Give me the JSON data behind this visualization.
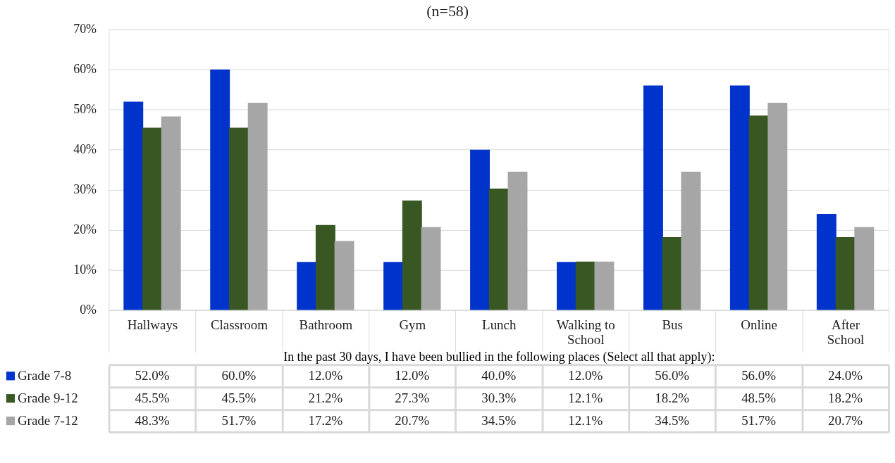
{
  "chart_data": {
    "type": "bar",
    "title": "(n=58)",
    "xlabel": "In the past 30 days, I have been bullied in the following places (Select all that apply):",
    "categories": [
      "Hallways",
      "Classroom",
      "Bathroom",
      "Gym",
      "Lunch",
      "Walking to School",
      "Bus",
      "Online",
      "After School"
    ],
    "series": [
      {
        "name": "Grade  7-8",
        "color": "#0033cc",
        "values": [
          52.0,
          60.0,
          12.0,
          12.0,
          40.0,
          12.0,
          56.0,
          56.0,
          24.0
        ],
        "value_labels": [
          "52.0%",
          "60.0%",
          "12.0%",
          "12.0%",
          "40.0%",
          "12.0%",
          "56.0%",
          "56.0%",
          "24.0%"
        ]
      },
      {
        "name": "Grade  9-12",
        "color": "#385723",
        "values": [
          45.5,
          45.5,
          21.2,
          27.3,
          30.3,
          12.1,
          18.2,
          48.5,
          18.2
        ],
        "value_labels": [
          "45.5%",
          "45.5%",
          "21.2%",
          "27.3%",
          "30.3%",
          "12.1%",
          "18.2%",
          "48.5%",
          "18.2%"
        ]
      },
      {
        "name": "Grade  7-12",
        "color": "#a6a6a6",
        "values": [
          48.3,
          51.7,
          17.2,
          20.7,
          34.5,
          12.1,
          34.5,
          51.7,
          20.7
        ],
        "value_labels": [
          "48.3%",
          "51.7%",
          "17.2%",
          "20.7%",
          "34.5%",
          "12.1%",
          "34.5%",
          "51.7%",
          "20.7%"
        ]
      }
    ],
    "ylim": [
      0,
      70
    ],
    "yticks": [
      {
        "value": 0,
        "label": "0%"
      },
      {
        "value": 10,
        "label": "10%"
      },
      {
        "value": 20,
        "label": "20%"
      },
      {
        "value": 30,
        "label": "30%"
      },
      {
        "value": 40,
        "label": "40%"
      },
      {
        "value": 50,
        "label": "50%"
      },
      {
        "value": 60,
        "label": "60%"
      },
      {
        "value": 70,
        "label": "70%"
      }
    ],
    "grid": "y",
    "legend": "bottom"
  }
}
